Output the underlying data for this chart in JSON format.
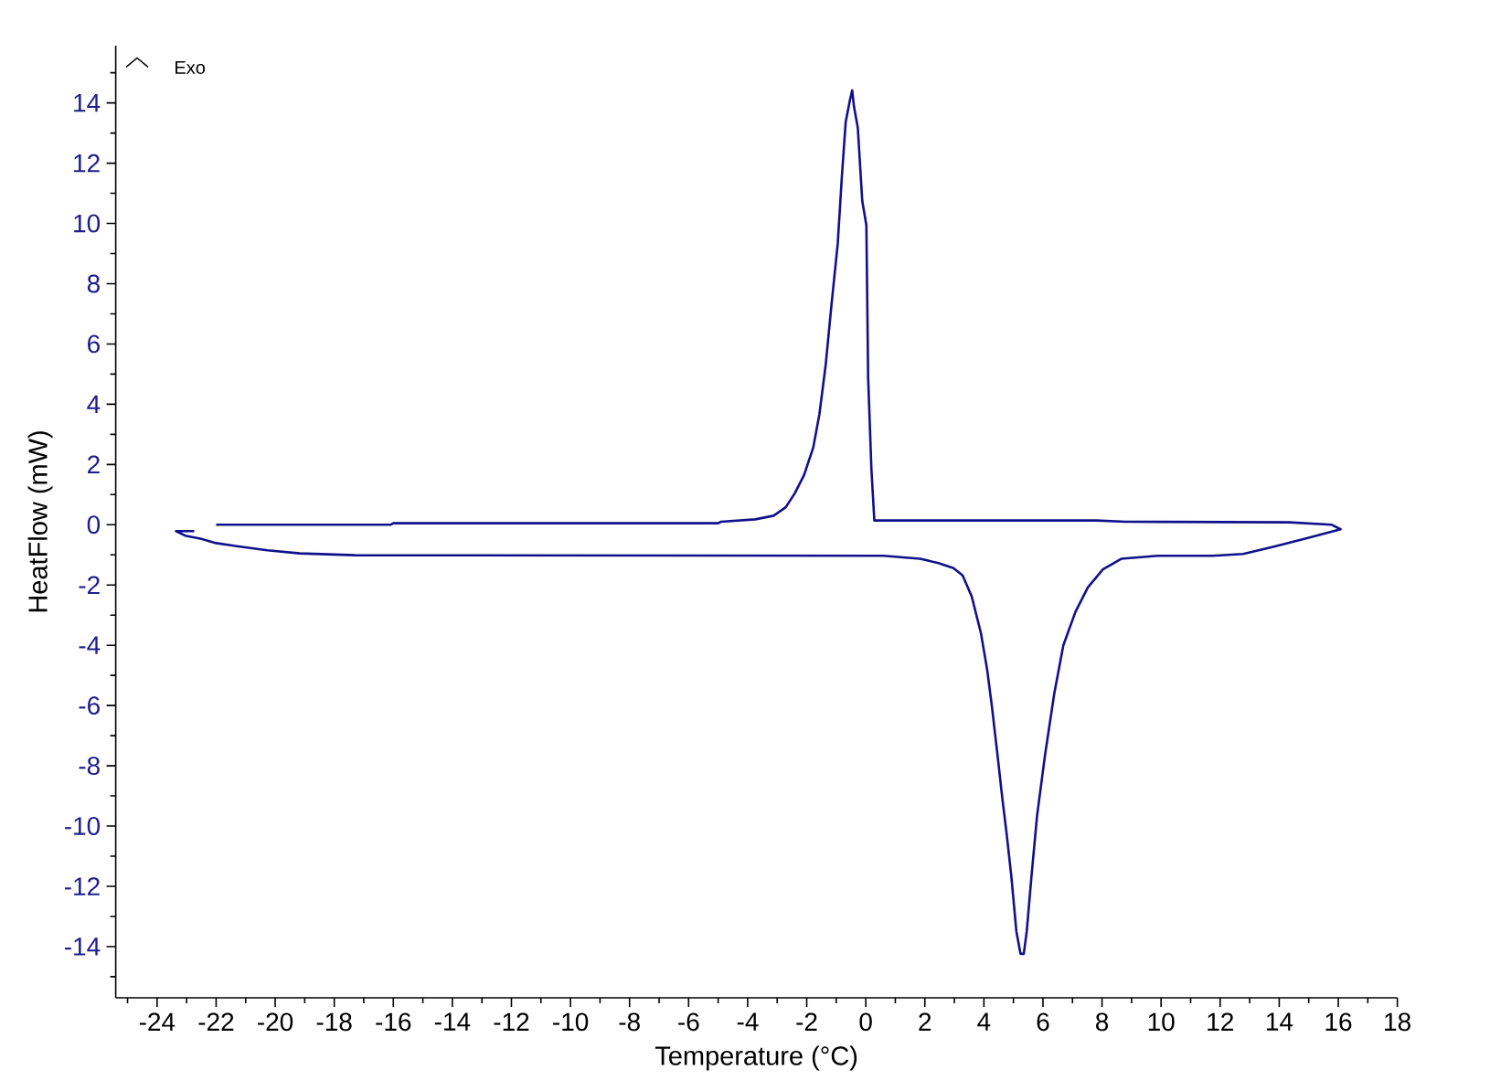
{
  "chart_data": {
    "type": "line",
    "xlabel": "Temperature (°C)",
    "ylabel": "HeatFlow (mW)",
    "annotations": [
      "Exo"
    ],
    "color": "#10108c",
    "x": [
      -22,
      -16.1,
      -16.0,
      -5.0,
      -4.9,
      -3.74,
      -3.12,
      -2.71,
      -2.4,
      -2.09,
      -1.78,
      -1.57,
      -1.36,
      -1.16,
      -0.95,
      -0.81,
      -0.68,
      -0.54,
      -0.46,
      -0.4,
      -0.27,
      -0.12,
      0.02,
      0.08,
      0.19,
      0.29,
      7.8,
      8.8,
      14.33,
      15.78,
      16.08,
      14.85,
      13.82,
      12.78,
      11.75,
      9.89,
      8.65,
      8.03,
      7.52,
      7.1,
      6.69,
      6.38,
      6.07,
      5.8,
      5.61,
      5.45,
      5.35,
      5.24,
      5.1,
      4.93,
      4.77,
      4.62,
      4.46,
      4.27,
      4.11,
      3.9,
      3.59,
      3.28,
      2.97,
      2.46,
      1.84,
      0.6,
      -17.3,
      -19.17,
      -20.26,
      -21.3,
      -22.0,
      -22.5,
      -23.05,
      -23.36,
      -22.74
    ],
    "values": [
      0,
      0,
      0.05,
      0.05,
      0.1,
      0.18,
      0.3,
      0.58,
      1.05,
      1.65,
      2.56,
      3.67,
      5.29,
      7.31,
      9.33,
      11.55,
      13.37,
      14.08,
      14.42,
      13.88,
      13.17,
      10.75,
      9.94,
      4.88,
      1.85,
      0.14,
      0.14,
      0.1,
      0.08,
      0.0,
      -0.15,
      -0.47,
      -0.73,
      -0.97,
      -1.03,
      -1.03,
      -1.13,
      -1.48,
      -2.08,
      -2.89,
      -4.0,
      -5.62,
      -7.64,
      -9.66,
      -11.68,
      -13.5,
      -14.24,
      -14.24,
      -13.5,
      -11.68,
      -10.26,
      -9.05,
      -7.64,
      -6.02,
      -4.81,
      -3.6,
      -2.39,
      -1.68,
      -1.44,
      -1.27,
      -1.13,
      -1.03,
      -1.01,
      -0.95,
      -0.85,
      -0.71,
      -0.61,
      -0.47,
      -0.36,
      -0.21,
      -0.21
    ],
    "xlim": [
      -25.4,
      18
    ],
    "ylim": [
      -15.7,
      15.9
    ],
    "xticks": [
      {
        "value": -25,
        "label": null
      },
      -24,
      {
        "value": -23,
        "label": null
      },
      -22,
      {
        "value": -21,
        "label": null
      },
      -20,
      {
        "value": -19,
        "label": null
      },
      -18,
      {
        "value": -17,
        "label": null
      },
      -16,
      {
        "value": -15,
        "label": null
      },
      -14,
      {
        "value": -13,
        "label": null
      },
      -12,
      {
        "value": -11,
        "label": null
      },
      -10,
      {
        "value": -9,
        "label": null
      },
      -8,
      {
        "value": -7,
        "label": null
      },
      -6,
      {
        "value": -5,
        "label": null
      },
      -4,
      {
        "value": -3,
        "label": null
      },
      -2,
      {
        "value": -1,
        "label": null
      },
      0,
      {
        "value": 1,
        "label": null
      },
      2,
      {
        "value": 3,
        "label": null
      },
      4,
      {
        "value": 5,
        "label": null
      },
      6,
      {
        "value": 7,
        "label": null
      },
      8,
      {
        "value": 9,
        "label": null
      },
      10,
      {
        "value": 11,
        "label": null
      },
      12,
      {
        "value": 13,
        "label": null
      },
      14,
      {
        "value": 15,
        "label": null
      },
      16,
      {
        "value": 17,
        "label": null
      },
      18
    ],
    "yticks": [
      {
        "value": -15,
        "label": null
      },
      -14,
      {
        "value": -13,
        "label": null
      },
      -12,
      {
        "value": -11,
        "label": null
      },
      -10,
      {
        "value": -9,
        "label": null
      },
      -8,
      {
        "value": -7,
        "label": null
      },
      -6,
      {
        "value": -5,
        "label": null
      },
      -4,
      {
        "value": -3,
        "label": null
      },
      -2,
      {
        "value": -1,
        "label": null
      },
      0,
      {
        "value": 1,
        "label": null
      },
      2,
      {
        "value": 3,
        "label": null
      },
      4,
      {
        "value": 5,
        "label": null
      },
      6,
      {
        "value": 7,
        "label": null
      },
      8,
      {
        "value": 9,
        "label": null
      },
      10,
      {
        "value": 11,
        "label": null
      },
      12,
      {
        "value": 13,
        "label": null
      },
      14,
      {
        "value": 15,
        "label": null
      }
    ]
  }
}
